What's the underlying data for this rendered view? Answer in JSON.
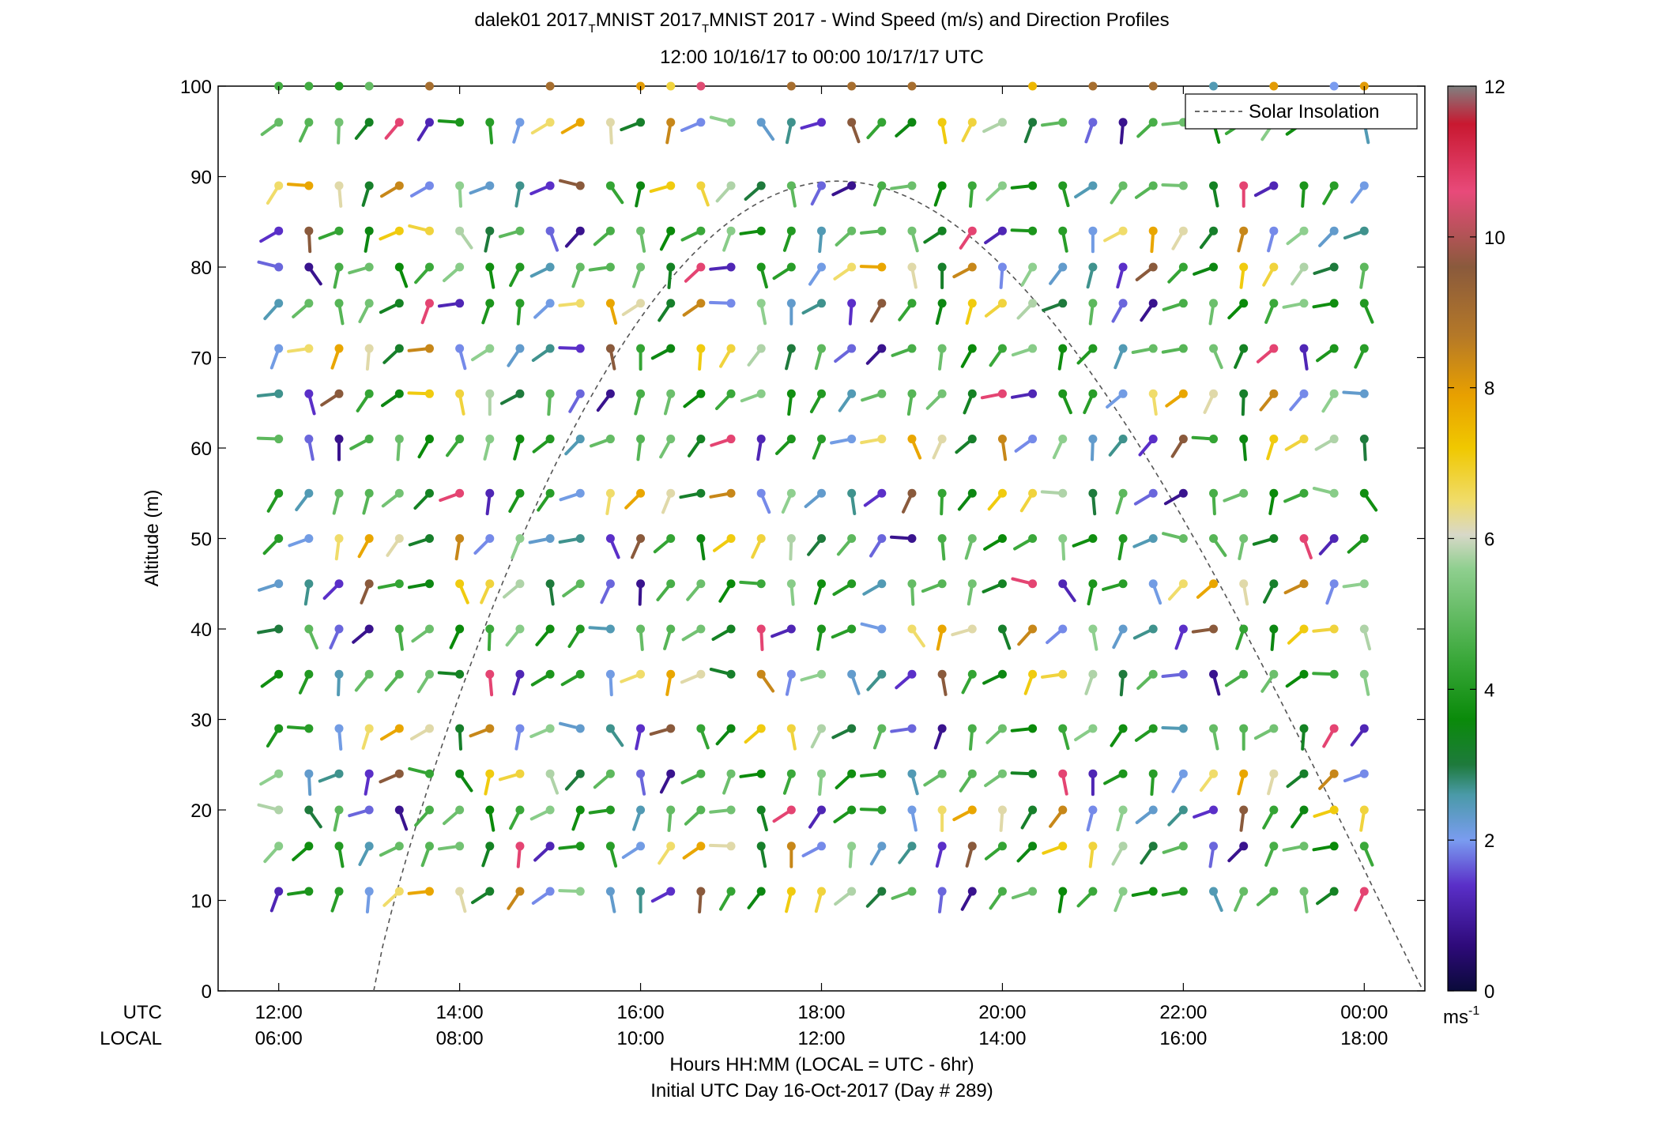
{
  "chart_data": {
    "type": "scatter",
    "title_line1_parts": [
      "dalek01 2017",
      "MNIST 2017",
      "MNIST 2017 - Wind Speed (m/s) and Direction Profiles"
    ],
    "title_subscript": "T",
    "title_line2": "12:00 10/16/17 to 00:00 10/17/17  UTC",
    "ylabel": "Altitude (m)",
    "xlabel_line1": "Hours HH:MM  (LOCAL = UTC - 6hr)",
    "xlabel_line2": "Initial UTC Day 16-Oct-2017 (Day # 289)",
    "utc_row_label": "UTC",
    "local_row_label": "LOCAL",
    "x_ticks_utc": [
      "12:00",
      "14:00",
      "16:00",
      "18:00",
      "20:00",
      "22:00",
      "00:00"
    ],
    "x_ticks_local": [
      "06:00",
      "08:00",
      "10:00",
      "12:00",
      "14:00",
      "16:00",
      "18:00"
    ],
    "x_tick_hours": [
      12,
      14,
      16,
      18,
      20,
      22,
      24
    ],
    "xlim_hours": [
      11.33,
      24.67
    ],
    "ylim": [
      0,
      100
    ],
    "y_ticks": [
      0,
      10,
      20,
      30,
      40,
      50,
      60,
      70,
      80,
      90,
      100
    ],
    "altitudes_m": [
      11,
      16,
      20,
      24,
      29,
      35,
      40,
      45,
      50,
      55,
      61,
      66,
      71,
      76,
      80,
      84,
      89,
      96,
      100
    ],
    "time_start_hour": 12,
    "time_step_min": 20,
    "time_count": 37,
    "colorbar": {
      "min": 0,
      "max": 12,
      "ticks": [
        0,
        2,
        4,
        6,
        8,
        10,
        12
      ],
      "unit_label": "ms",
      "unit_exponent": "-1"
    },
    "legend": {
      "label": "Solar Insolation",
      "position": "top-right",
      "line_color": "#555555"
    },
    "solar_curve": {
      "rise_hour": 13.05,
      "set_hour": 24.65,
      "peak_hour": 18.85,
      "peak_altitude": 89.5
    },
    "wind_barbs": {
      "description_fields": "speed in m/s, direction in degrees (meteorological, from)",
      "speed_pattern": [
        1.2,
        3.5,
        5.0,
        2.3,
        4.4,
        6.2,
        1.7,
        3.9,
        7.1,
        4.8,
        2.7,
        5.5,
        3.2,
        0.8,
        4.1,
        6.8,
        5.2,
        1.4,
        3.7,
        8.4,
        4.6,
        2.1,
        5.8,
        3.3,
        9.6,
        4.0,
        1.9,
        5.1,
        6.5,
        3.0,
        10.7,
        4.3,
        2.5,
        5.6,
        3.6,
        7.8,
        4.9
      ],
      "direction_pattern": [
        200,
        225,
        160,
        250,
        190,
        210,
        175,
        235,
        205,
        185,
        260,
        170,
        215,
        145,
        195,
        240,
        180,
        220,
        165,
        230
      ],
      "top_row_calm_speeds": [
        4.5,
        4.5,
        4.0,
        5.0,
        0,
        9.0,
        0,
        0,
        0,
        9.0,
        0,
        0,
        8.0,
        6.8,
        10.5,
        0,
        0,
        9.0,
        0,
        9.0,
        0,
        9.0,
        0,
        0,
        0,
        7.5,
        0,
        9.0,
        0,
        9.0,
        0,
        2.5,
        0,
        8.0,
        0,
        2.0,
        8.0
      ]
    },
    "colors": {
      "speed_scale": [
        "#0a0a3a",
        "#2e0a7a",
        "#5a2fc8",
        "#7a9cf0",
        "#4a9aa8",
        "#1e7a3c",
        "#0a8a0a",
        "#3aa83a",
        "#8fcf8f",
        "#d8d8c8",
        "#f0dc6a",
        "#f0c800",
        "#e8a000",
        "#b47828",
        "#8a5a3c",
        "#e84a7a",
        "#c81830",
        "#808080"
      ]
    }
  }
}
